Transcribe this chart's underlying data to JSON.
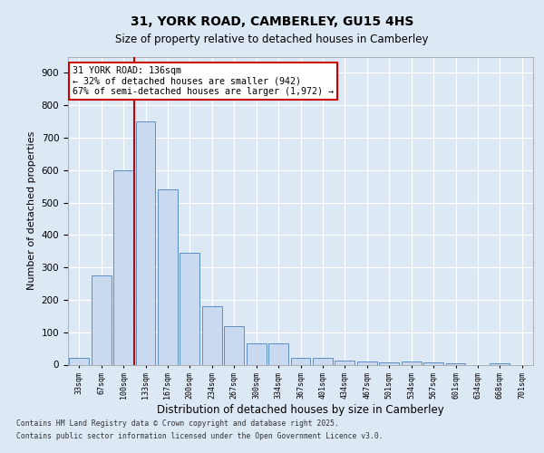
{
  "title1": "31, YORK ROAD, CAMBERLEY, GU15 4HS",
  "title2": "Size of property relative to detached houses in Camberley",
  "xlabel": "Distribution of detached houses by size in Camberley",
  "ylabel": "Number of detached properties",
  "categories": [
    "33sqm",
    "67sqm",
    "100sqm",
    "133sqm",
    "167sqm",
    "200sqm",
    "234sqm",
    "267sqm",
    "300sqm",
    "334sqm",
    "367sqm",
    "401sqm",
    "434sqm",
    "467sqm",
    "501sqm",
    "534sqm",
    "567sqm",
    "601sqm",
    "634sqm",
    "668sqm",
    "701sqm"
  ],
  "values": [
    20,
    275,
    600,
    750,
    540,
    345,
    180,
    118,
    67,
    67,
    22,
    20,
    12,
    10,
    8,
    10,
    8,
    5,
    0,
    5,
    0
  ],
  "bar_color": "#c9d9f0",
  "bar_edge_color": "#5b8ec4",
  "subject_line_index": 3,
  "subject_line_color": "#cc0000",
  "annotation_line1": "31 YORK ROAD: 136sqm",
  "annotation_line2": "← 32% of detached houses are smaller (942)",
  "annotation_line3": "67% of semi-detached houses are larger (1,972) →",
  "annotation_box_color": "#ffffff",
  "annotation_box_edge": "#cc0000",
  "ylim": [
    0,
    950
  ],
  "yticks": [
    0,
    100,
    200,
    300,
    400,
    500,
    600,
    700,
    800,
    900
  ],
  "footer1": "Contains HM Land Registry data © Crown copyright and database right 2025.",
  "footer2": "Contains public sector information licensed under the Open Government Licence v3.0.",
  "background_color": "#dde8f5",
  "plot_bg_color": "#dde8f5"
}
